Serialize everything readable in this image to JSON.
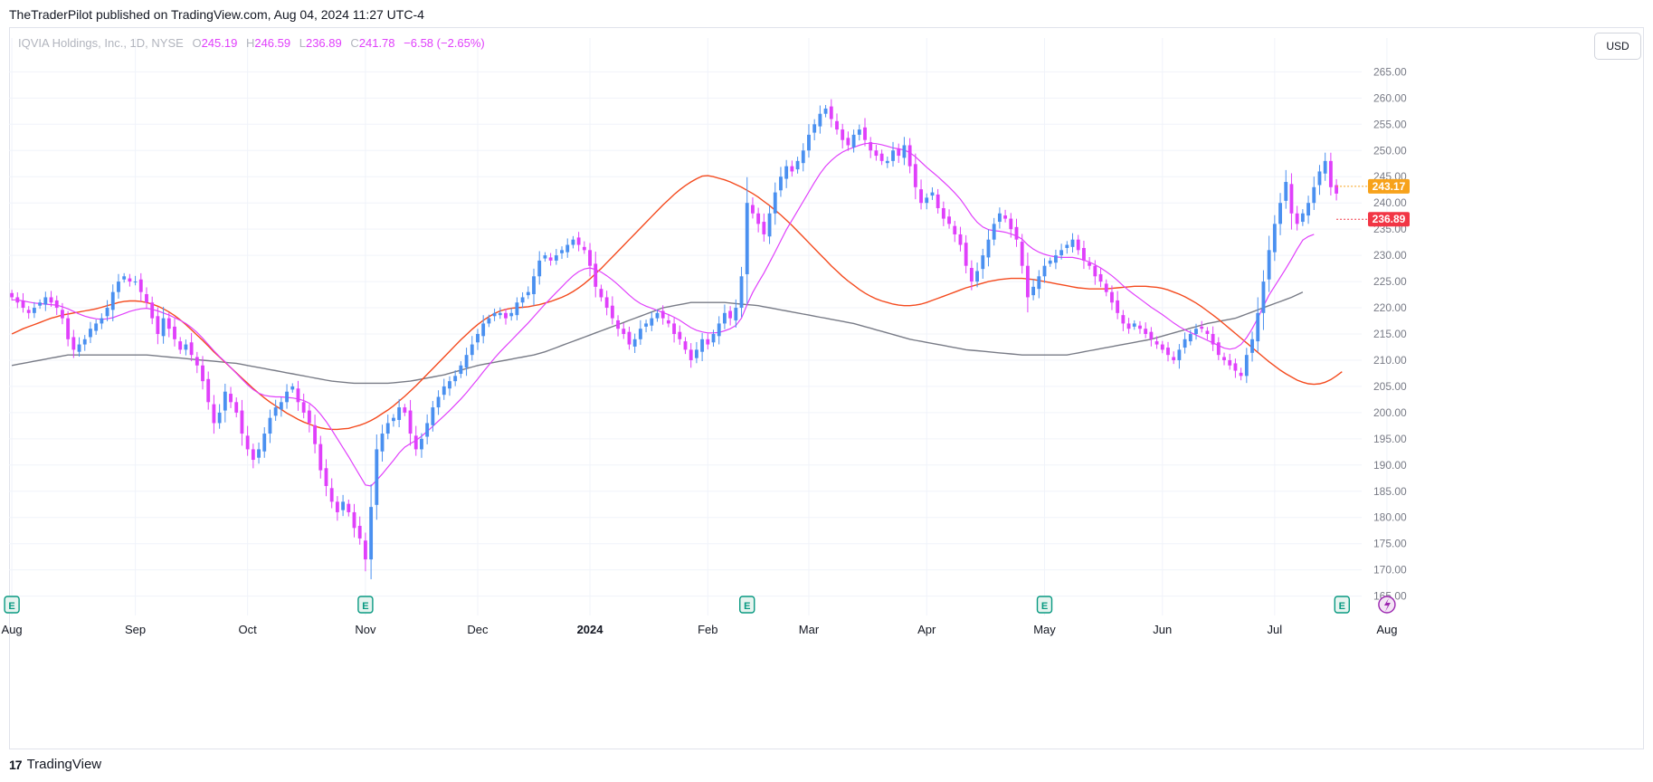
{
  "header": {
    "published_by": "TheTraderPilot published on TradingView.com, Aug 04, 2024 11:27 UTC-4"
  },
  "legend": {
    "symbol": "IQVIA Holdings, Inc., 1D, NYSE",
    "o_label": "O",
    "o_value": "245.19",
    "h_label": "H",
    "h_value": "246.59",
    "l_label": "L",
    "l_value": "236.89",
    "c_label": "C",
    "c_value": "241.78",
    "change": "−6.58 (−2.65%)"
  },
  "currency_button": "USD",
  "footer": {
    "brand": "TradingView",
    "logo": "17"
  },
  "price_tags": [
    {
      "value": 243.17,
      "label": "243.17",
      "color": "#f7a21b"
    },
    {
      "value": 236.89,
      "label": "236.89",
      "color": "#f23645"
    }
  ],
  "colors": {
    "up": "#4a90f0",
    "down": "#e040fb",
    "ma_fast": "#e040fb",
    "ma_mid": "#f44a1e",
    "ma_slow": "#787b86",
    "grid": "#f0f3fa",
    "earnings": "#089981"
  },
  "chart_data": {
    "type": "candlestick",
    "ylim": [
      162,
      268
    ],
    "yticks": [
      165,
      170,
      175,
      180,
      185,
      190,
      195,
      200,
      205,
      210,
      215,
      220,
      225,
      230,
      235,
      240,
      245,
      250,
      255,
      260,
      265
    ],
    "ytick_labels": [
      "165.00",
      "170.00",
      "175.00",
      "180.00",
      "185.00",
      "190.00",
      "195.00",
      "200.00",
      "205.00",
      "210.00",
      "215.00",
      "220.00",
      "225.00",
      "230.00",
      "235.00",
      "240.00",
      "245.00",
      "250.00",
      "255.00",
      "260.00",
      "265.00"
    ],
    "xlabels": [
      "Aug",
      "Sep",
      "Oct",
      "Nov",
      "Dec",
      "2024",
      "Feb",
      "Mar",
      "Apr",
      "May",
      "Jun",
      "Jul",
      "Aug"
    ],
    "xlabel_index": [
      0,
      22,
      42,
      63,
      83,
      103,
      124,
      142,
      163,
      184,
      205,
      225,
      245
    ],
    "earnings_index": [
      0,
      63,
      131,
      184,
      237
    ],
    "dividend_index": 245,
    "closes": [
      222,
      221,
      220,
      219,
      220,
      221,
      222,
      221,
      220,
      218,
      214,
      212,
      213,
      214,
      216,
      217,
      218,
      220,
      223,
      225,
      226,
      225,
      225,
      223,
      221,
      218,
      215,
      218,
      216,
      214,
      212,
      213,
      211,
      209,
      206,
      202,
      198,
      200,
      204,
      202,
      200,
      196,
      193,
      191,
      193,
      196,
      199,
      201,
      202,
      204,
      205,
      202,
      200,
      198,
      194,
      189,
      186,
      183,
      181,
      183,
      181,
      178,
      176,
      172,
      182,
      193,
      196,
      198,
      199,
      201,
      200,
      196,
      193,
      195,
      198,
      201,
      203,
      205,
      206,
      207,
      209,
      211,
      213,
      215,
      217,
      218,
      219,
      219,
      218,
      219,
      221,
      222,
      223,
      226,
      229,
      230,
      229,
      230,
      231,
      232,
      233,
      232,
      231,
      228,
      224,
      222,
      220,
      218,
      216,
      215,
      213,
      214,
      216,
      217,
      218,
      219,
      218,
      217,
      215,
      214,
      212,
      210,
      212,
      214,
      213,
      215,
      217,
      219,
      218,
      220,
      226,
      240,
      238,
      236,
      234,
      238,
      242,
      245,
      247,
      246,
      248,
      250,
      253,
      255,
      257,
      258,
      256,
      254,
      252,
      251,
      253,
      254,
      252,
      250,
      249,
      248,
      248,
      250,
      249,
      251,
      247,
      243,
      240,
      241,
      242,
      239,
      237,
      236,
      234,
      232,
      228,
      225,
      227,
      230,
      233,
      236,
      238,
      237,
      235,
      233,
      228,
      222,
      224,
      226,
      228,
      229,
      230,
      231,
      232,
      233,
      231,
      229,
      228,
      226,
      225,
      223,
      221,
      219,
      217,
      216,
      217,
      216,
      215,
      214,
      213,
      212,
      211,
      210,
      212,
      214,
      215,
      216,
      216,
      215,
      213,
      211,
      210,
      209,
      208,
      207,
      211,
      214,
      219,
      225,
      231,
      236,
      240,
      244,
      238,
      236,
      238,
      240,
      243,
      246,
      248,
      243,
      241.78
    ],
    "ma_fast": [
      221.5,
      221.5,
      221.3,
      221.1,
      220.9,
      220.8,
      220.7,
      220.6,
      220.5,
      220.2,
      219.8,
      219.3,
      218.8,
      218.4,
      218.1,
      217.9,
      217.8,
      217.9,
      218.1,
      218.5,
      218.9,
      219.3,
      219.6,
      219.8,
      219.9,
      219.7,
      219.4,
      219.0,
      218.6,
      218.1,
      217.6,
      217.0,
      216.2,
      215.3,
      214.2,
      213.0,
      211.8,
      210.7,
      209.7,
      208.6,
      207.5,
      206.4,
      205.3,
      204.4,
      203.7,
      203.3,
      203.1,
      203.0,
      203.0,
      202.9,
      202.8,
      202.6,
      202.3,
      201.8,
      200.9,
      199.7,
      198.3,
      196.7,
      195.0,
      193.3,
      191.6,
      189.8,
      188.0,
      186.2,
      186.0,
      187.1,
      188.3,
      189.6,
      190.9,
      192.3,
      193.4,
      194.1,
      194.7,
      195.5,
      196.4,
      197.4,
      198.4,
      199.4,
      200.4,
      201.5,
      202.6,
      203.8,
      205.1,
      206.4,
      207.8,
      209.1,
      210.4,
      211.6,
      212.7,
      213.8,
      214.9,
      216.0,
      217.1,
      218.3,
      219.5,
      220.7,
      221.8,
      222.9,
      224.0,
      225.1,
      226.1,
      226.9,
      227.4,
      227.6,
      227.3,
      226.8,
      226.1,
      225.3,
      224.4,
      223.4,
      222.4,
      221.5,
      220.8,
      220.3,
      219.9,
      219.5,
      219.1,
      218.7,
      218.2,
      217.6,
      216.9,
      216.2,
      215.7,
      215.4,
      215.2,
      215.2,
      215.3,
      215.6,
      216.0,
      216.6,
      218.0,
      220.6,
      222.9,
      224.8,
      226.6,
      228.6,
      230.7,
      232.8,
      234.9,
      236.7,
      238.5,
      240.3,
      242.1,
      243.9,
      245.6,
      247.0,
      248.1,
      249.0,
      249.7,
      250.2,
      250.6,
      251.0,
      251.3,
      251.4,
      251.3,
      251.1,
      250.8,
      250.5,
      250.3,
      250.1,
      249.6,
      248.8,
      247.8,
      246.8,
      245.9,
      245.0,
      244.0,
      243.0,
      241.9,
      240.7,
      239.2,
      237.6,
      236.3,
      235.4,
      234.9,
      234.7,
      234.6,
      234.4,
      234.1,
      233.7,
      233.1,
      232.0,
      231.2,
      230.6,
      230.2,
      229.9,
      229.7,
      229.6,
      229.6,
      229.6,
      229.4,
      229.1,
      228.7,
      228.2,
      227.6,
      226.9,
      226.1,
      225.2,
      224.2,
      223.3,
      222.5,
      221.7,
      220.9,
      220.1,
      219.4,
      218.7,
      217.9,
      217.1,
      216.4,
      215.8,
      215.3,
      214.8,
      214.3,
      213.8,
      213.3,
      212.8,
      212.3,
      212.1,
      212.3,
      213.0,
      214.3,
      216.0,
      218.0,
      220.3,
      222.4,
      224.1,
      225.8,
      227.5,
      229.3,
      231.2,
      232.9,
      233.6,
      234.0
    ],
    "ma_mid": [
      215.0,
      215.5,
      216.0,
      216.4,
      216.8,
      217.2,
      217.6,
      218.0,
      218.3,
      218.6,
      218.8,
      219.0,
      219.2,
      219.4,
      219.6,
      219.8,
      220.1,
      220.4,
      220.7,
      221.0,
      221.2,
      221.3,
      221.3,
      221.2,
      221.0,
      220.7,
      220.3,
      219.8,
      219.2,
      218.5,
      217.7,
      216.8,
      215.8,
      214.8,
      213.8,
      212.7,
      211.6,
      210.6,
      209.6,
      208.6,
      207.6,
      206.6,
      205.6,
      204.6,
      203.7,
      202.8,
      202.0,
      201.3,
      200.6,
      199.9,
      199.3,
      198.7,
      198.2,
      197.8,
      197.4,
      197.1,
      196.9,
      196.8,
      196.8,
      196.9,
      197.0,
      197.3,
      197.6,
      198.0,
      198.5,
      199.1,
      199.8,
      200.5,
      201.3,
      202.2,
      203.1,
      204.1,
      205.1,
      206.2,
      207.3,
      208.4,
      209.5,
      210.6,
      211.7,
      212.8,
      213.9,
      214.9,
      215.9,
      216.8,
      217.6,
      218.3,
      218.9,
      219.4,
      219.7,
      219.9,
      220.0,
      220.1,
      220.2,
      220.4,
      220.6,
      220.9,
      221.2,
      221.6,
      222.0,
      222.5,
      223.1,
      223.8,
      224.6,
      225.5,
      226.5,
      227.5,
      228.6,
      229.7,
      230.8,
      231.9,
      233.0,
      234.1,
      235.2,
      236.3,
      237.4,
      238.5,
      239.6,
      240.6,
      241.6,
      242.5,
      243.3,
      244.0,
      244.6,
      245.1,
      245.2,
      245.0,
      244.7,
      244.4,
      244.0,
      243.5,
      243.0,
      242.4,
      241.8,
      241.1,
      240.3,
      239.5,
      238.6,
      237.7,
      236.7,
      235.7,
      234.6,
      233.5,
      232.4,
      231.3,
      230.2,
      229.1,
      228.0,
      227.0,
      226.0,
      225.1,
      224.3,
      223.5,
      222.8,
      222.2,
      221.7,
      221.3,
      221.0,
      220.7,
      220.5,
      220.4,
      220.4,
      220.5,
      220.7,
      221.0,
      221.4,
      221.8,
      222.2,
      222.6,
      223.0,
      223.4,
      223.8,
      224.1,
      224.4,
      224.7,
      225.0,
      225.2,
      225.4,
      225.5,
      225.6,
      225.6,
      225.6,
      225.5,
      225.4,
      225.2,
      225.0,
      224.8,
      224.6,
      224.4,
      224.2,
      224.0,
      223.8,
      223.7,
      223.6,
      223.6,
      223.6,
      223.6,
      223.7,
      223.8,
      223.9,
      224.0,
      224.1,
      224.1,
      224.1,
      224.0,
      223.9,
      223.7,
      223.4,
      223.0,
      222.6,
      222.1,
      221.5,
      220.9,
      220.2,
      219.4,
      218.6,
      217.8,
      216.9,
      216.0,
      215.1,
      214.2,
      213.3,
      212.4,
      211.5,
      210.6,
      209.7,
      208.9,
      208.1,
      207.4,
      206.8,
      206.2,
      205.8,
      205.5,
      205.4,
      205.5,
      205.8,
      206.3,
      207.0,
      207.8
    ],
    "ma_slow": [
      209,
      209.2,
      209.4,
      209.6,
      209.8,
      210,
      210.2,
      210.4,
      210.6,
      210.8,
      211,
      211,
      211,
      211,
      211,
      211,
      211,
      211,
      211,
      211,
      211,
      211,
      211,
      211,
      211,
      210.9,
      210.8,
      210.7,
      210.6,
      210.5,
      210.4,
      210.3,
      210.2,
      210.1,
      210,
      209.9,
      209.8,
      209.7,
      209.6,
      209.5,
      209.4,
      209.2,
      209,
      208.8,
      208.6,
      208.4,
      208.2,
      208,
      207.8,
      207.6,
      207.4,
      207.2,
      207,
      206.8,
      206.6,
      206.4,
      206.2,
      206,
      205.9,
      205.8,
      205.7,
      205.6,
      205.6,
      205.6,
      205.6,
      205.6,
      205.6,
      205.6,
      205.7,
      205.8,
      205.9,
      206,
      206.2,
      206.4,
      206.6,
      206.8,
      207,
      207.2,
      207.5,
      207.8,
      208.1,
      208.4,
      208.7,
      209,
      209.2,
      209.4,
      209.6,
      209.8,
      210,
      210.2,
      210.4,
      210.6,
      210.8,
      211,
      211.3,
      211.6,
      212,
      212.4,
      212.8,
      213.2,
      213.6,
      214,
      214.4,
      214.8,
      215.2,
      215.6,
      216,
      216.4,
      216.8,
      217.2,
      217.6,
      218,
      218.4,
      218.8,
      219.2,
      219.6,
      220,
      220.2,
      220.4,
      220.6,
      220.8,
      221,
      221,
      221,
      221,
      221,
      221,
      221,
      220.9,
      220.8,
      220.7,
      220.6,
      220.5,
      220.4,
      220.2,
      220,
      219.8,
      219.6,
      219.4,
      219.2,
      219,
      218.8,
      218.6,
      218.4,
      218.2,
      218,
      217.8,
      217.6,
      217.4,
      217.2,
      217,
      216.7,
      216.4,
      216.1,
      215.8,
      215.5,
      215.2,
      214.9,
      214.6,
      214.3,
      214,
      213.8,
      213.6,
      213.4,
      213.2,
      213,
      212.8,
      212.6,
      212.4,
      212.2,
      212,
      211.9,
      211.8,
      211.7,
      211.6,
      211.5,
      211.4,
      211.3,
      211.2,
      211.1,
      211,
      211,
      211,
      211,
      211,
      211,
      211,
      211,
      211,
      211.2,
      211.4,
      211.6,
      211.8,
      212,
      212.2,
      212.4,
      212.6,
      212.8,
      213,
      213.2,
      213.4,
      213.6,
      213.8,
      214,
      214.3,
      214.6,
      214.9,
      215.2,
      215.5,
      215.8,
      216.1,
      216.4,
      216.7,
      217,
      217.2,
      217.4,
      217.6,
      217.8,
      218,
      218.4,
      218.8,
      219.2,
      219.6,
      220,
      220.4,
      220.8,
      221.2,
      221.6,
      222,
      222.5,
      223
    ]
  }
}
